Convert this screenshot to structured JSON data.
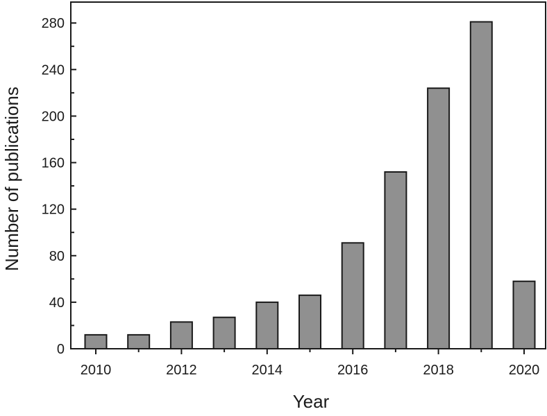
{
  "chart_data": {
    "type": "bar",
    "title": "",
    "xlabel": "Year",
    "ylabel": "Number of publications",
    "categories": [
      "2010",
      "2011",
      "2012",
      "2013",
      "2014",
      "2015",
      "2016",
      "2017",
      "2018",
      "2019",
      "2020"
    ],
    "values": [
      12,
      12,
      23,
      27,
      40,
      46,
      91,
      152,
      224,
      281,
      58
    ],
    "x_tick_labels": [
      "2010",
      "2012",
      "2014",
      "2016",
      "2018",
      "2020"
    ],
    "y_ticks": [
      0,
      40,
      80,
      120,
      160,
      200,
      240,
      280
    ],
    "ylim": [
      0,
      298
    ],
    "grid": false,
    "legend": "none",
    "colors": {
      "bar_fill": "#909090",
      "bar_stroke": "#1a1a1a",
      "axis": "#1a1a1a"
    }
  }
}
